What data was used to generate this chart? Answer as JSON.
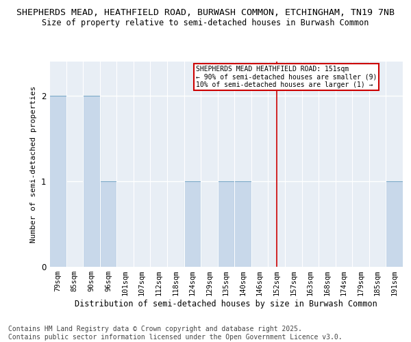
{
  "title": "SHEPHERDS MEAD, HEATHFIELD ROAD, BURWASH COMMON, ETCHINGHAM, TN19 7NB",
  "subtitle": "Size of property relative to semi-detached houses in Burwash Common",
  "xlabel": "Distribution of semi-detached houses by size in Burwash Common",
  "ylabel": "Number of semi-detached properties",
  "categories": [
    "79sqm",
    "85sqm",
    "90sqm",
    "96sqm",
    "101sqm",
    "107sqm",
    "112sqm",
    "118sqm",
    "124sqm",
    "129sqm",
    "135sqm",
    "140sqm",
    "146sqm",
    "152sqm",
    "157sqm",
    "163sqm",
    "168sqm",
    "174sqm",
    "179sqm",
    "185sqm",
    "191sqm"
  ],
  "values": [
    2,
    0,
    2,
    1,
    0,
    0,
    0,
    0,
    1,
    0,
    1,
    1,
    0,
    0,
    0,
    0,
    0,
    0,
    0,
    0,
    1
  ],
  "bar_color": "#c8d8ea",
  "bar_edge_color": "#7baac8",
  "highlight_index": 13,
  "highlight_color": "#cc0000",
  "annotation_text": "SHEPHERDS MEAD HEATHFIELD ROAD: 151sqm\n← 90% of semi-detached houses are smaller (9)\n10% of semi-detached houses are larger (1) →",
  "annotation_box_color": "#ffffff",
  "annotation_box_edge": "#cc0000",
  "footer": "Contains HM Land Registry data © Crown copyright and database right 2025.\nContains public sector information licensed under the Open Government Licence v3.0.",
  "ylim": [
    0,
    2.4
  ],
  "yticks": [
    0,
    1,
    2
  ],
  "title_fontsize": 9.5,
  "subtitle_fontsize": 8.5,
  "xlabel_fontsize": 8.5,
  "ylabel_fontsize": 8,
  "tick_fontsize": 7.5,
  "footer_fontsize": 7,
  "bg_color": "#e8eef5"
}
